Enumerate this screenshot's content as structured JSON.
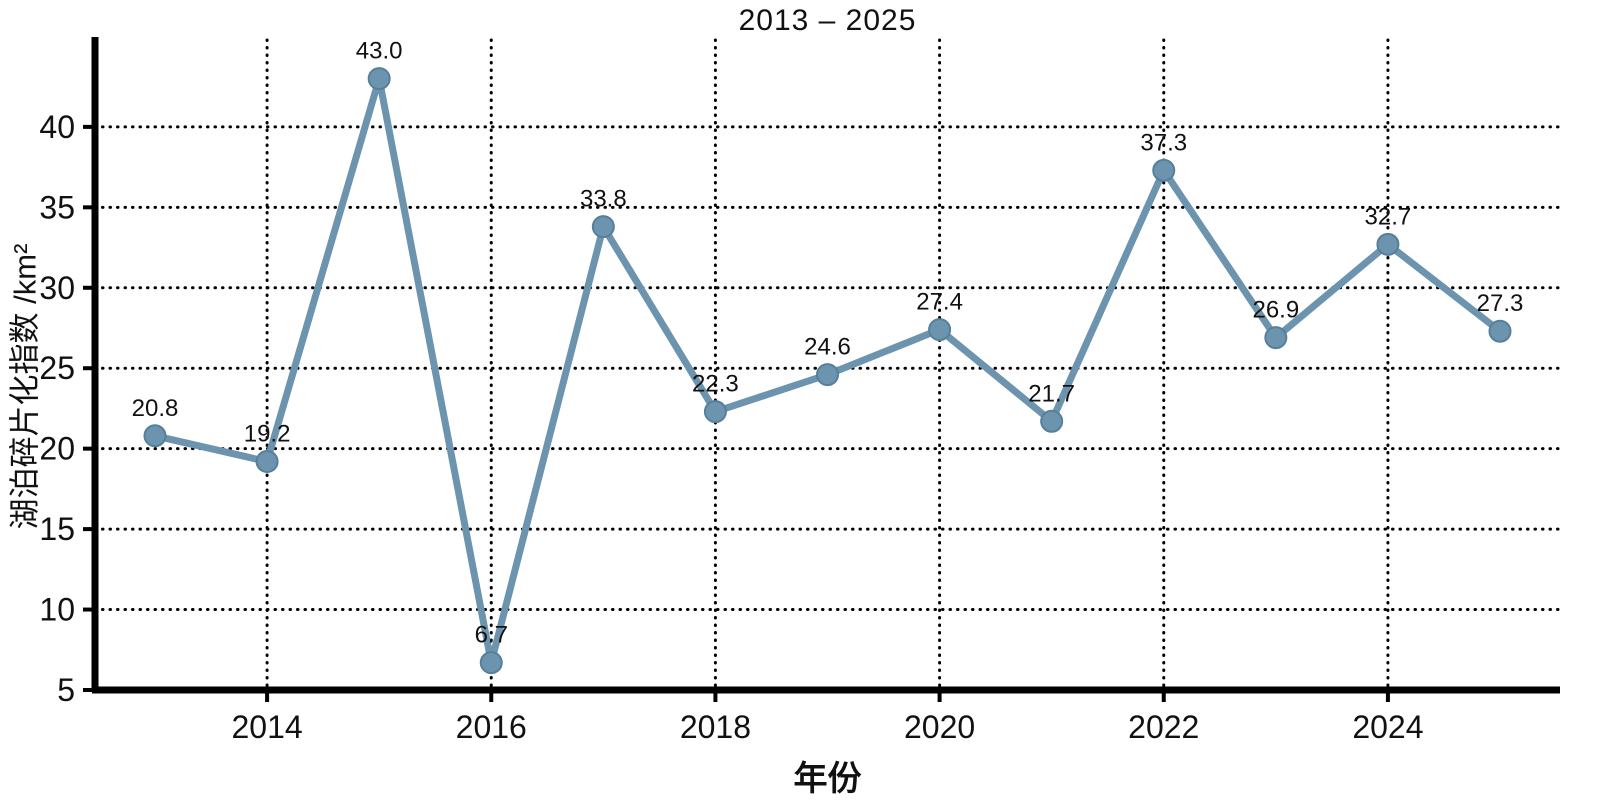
{
  "chart_data": {
    "type": "line",
    "title": "2013 – 2025",
    "xlabel": "年份",
    "ylabel": "湖泊碎片化指数 /km²",
    "x": [
      2013,
      2014,
      2015,
      2016,
      2017,
      2018,
      2019,
      2020,
      2021,
      2022,
      2023,
      2024,
      2025
    ],
    "values": [
      20.8,
      19.2,
      43.0,
      6.7,
      33.8,
      22.3,
      24.6,
      27.4,
      21.7,
      37.3,
      26.9,
      32.7,
      27.3
    ],
    "x_tick_labels": [
      2014,
      2016,
      2018,
      2020,
      2022,
      2024
    ],
    "y_tick_labels": [
      5,
      10,
      15,
      20,
      25,
      30,
      35,
      40
    ],
    "y_gridlines": [
      10,
      15,
      20,
      25,
      30,
      35,
      40
    ],
    "x_gridlines": [
      2014,
      2016,
      2018,
      2020,
      2022,
      2024
    ],
    "xlim": [
      2013,
      2025
    ],
    "ylim": [
      5,
      45.4
    ],
    "grid": "dotted",
    "legend_position": "none",
    "colors": {
      "line": "#6d94ae",
      "marker_fill": "#6d94ae",
      "marker_edge": "#557f9a",
      "axis": "#000000",
      "grid": "#000000",
      "text": "#111111"
    }
  }
}
